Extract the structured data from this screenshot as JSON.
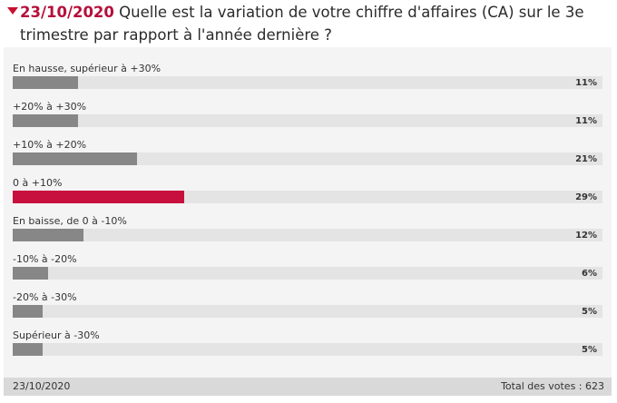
{
  "poll": {
    "date": "23/10/2020",
    "question": "Quelle est la variation de votre chiffre d'affaires (CA) sur le 3e trimestre par rapport à l'année dernière ?",
    "footer_date": "23/10/2020",
    "total_votes": "Total des votes : 623"
  },
  "colors": {
    "accent": "#c8103e",
    "bar": "#878787",
    "track": "#e4e4e4",
    "panel": "#f4f4f4",
    "footer": "#d9d9d9"
  },
  "chart_data": {
    "type": "bar",
    "orientation": "horizontal",
    "categories": [
      "En hausse, supérieur à +30%",
      "+20% à +30%",
      "+10% à +20%",
      "0 à +10%",
      "En baisse, de 0 à -10%",
      "-10% à -20%",
      "-20% à -30%",
      "Supérieur à -30%"
    ],
    "values": [
      11,
      11,
      21,
      29,
      12,
      6,
      5,
      5
    ],
    "labels": [
      "11%",
      "11%",
      "21%",
      "29%",
      "12%",
      "6%",
      "5%",
      "5%"
    ],
    "highlight_index": 3,
    "xlim": [
      0,
      100
    ]
  }
}
